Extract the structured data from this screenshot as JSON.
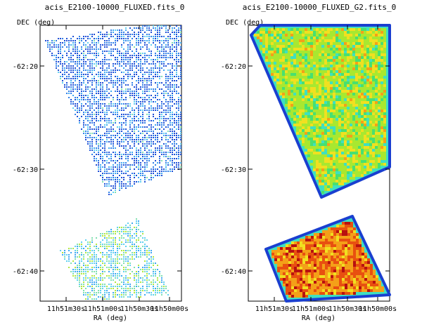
{
  "chart_data": [
    {
      "type": "heatmap",
      "title": "acis_E2100-10000_FLUXED.fits_0",
      "xlabel": "RA (deg)",
      "ylabel": "DEC (deg)",
      "x_ticks": [
        "11h51m30s",
        "11h51m00s",
        "11h50m30s",
        "11h50m00s"
      ],
      "y_ticks": [
        "-62:20",
        "-62:30",
        "-62:40"
      ],
      "colormap": [
        "#1f4fd6",
        "#2f7fe8",
        "#3fa8f2",
        "#5fd0f0",
        "#7fe0b0",
        "#b0e840"
      ],
      "regions": [
        "upper-field",
        "lower-field"
      ]
    },
    {
      "type": "heatmap",
      "title": "acis_E2100-10000_FLUXED_G2.fits_0",
      "xlabel": "RA (deg)",
      "ylabel": "DEC (deg)",
      "x_ticks": [
        "11h51m30s",
        "11h51m00s",
        "11h50m30s",
        "11h50m00s"
      ],
      "y_ticks": [
        "-62:20",
        "-62:30",
        "-62:40"
      ],
      "colormap": [
        "#1a3fd0",
        "#27a0f0",
        "#3fe0c0",
        "#48e070",
        "#a8e830",
        "#f0e020",
        "#f4a018",
        "#e85010",
        "#b81010"
      ],
      "regions": [
        "upper-field",
        "lower-field"
      ]
    }
  ]
}
